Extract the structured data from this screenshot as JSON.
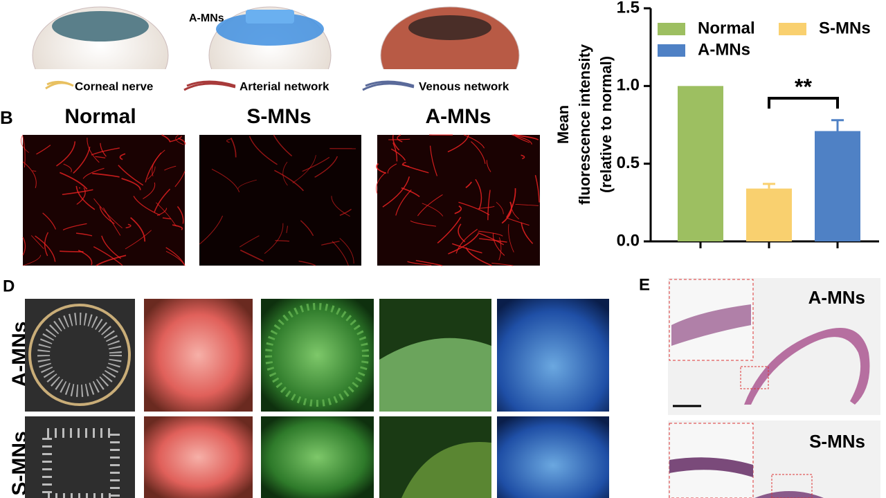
{
  "figure": {
    "top_label": "A-MNs",
    "legend_items": [
      "Corneal nerve",
      "Arterial network",
      "Venous network"
    ],
    "panel_b": {
      "letter": "B",
      "columns": [
        "Normal",
        "S-MNs",
        "A-MNs"
      ]
    },
    "panel_d": {
      "letter": "D",
      "rows": [
        "A-MNs",
        "S-MNs"
      ]
    },
    "panel_e": {
      "letter": "E",
      "labels": [
        "A-MNs",
        "S-MNs"
      ]
    }
  },
  "chart_data": {
    "type": "bar",
    "ylabel": [
      "Mean",
      "fluorescence intensity",
      "(relative to normal)"
    ],
    "categories": [
      "Normal",
      "S-MNs",
      "A-MNs"
    ],
    "values": [
      1.0,
      0.34,
      0.71
    ],
    "errors": [
      null,
      0.03,
      0.07
    ],
    "colors": [
      "#9dbf61",
      "#f9d06f",
      "#4f81c5"
    ],
    "significance": "**",
    "legend": "top",
    "ylim": [
      0,
      1.5
    ],
    "yticks": [
      {
        "value": 0,
        "label": "0.0"
      },
      {
        "value": 0.5,
        "label": "0.5"
      },
      {
        "value": 1,
        "label": "1.0"
      },
      {
        "value": 1.5,
        "label": "1.5"
      }
    ],
    "grid": false
  }
}
